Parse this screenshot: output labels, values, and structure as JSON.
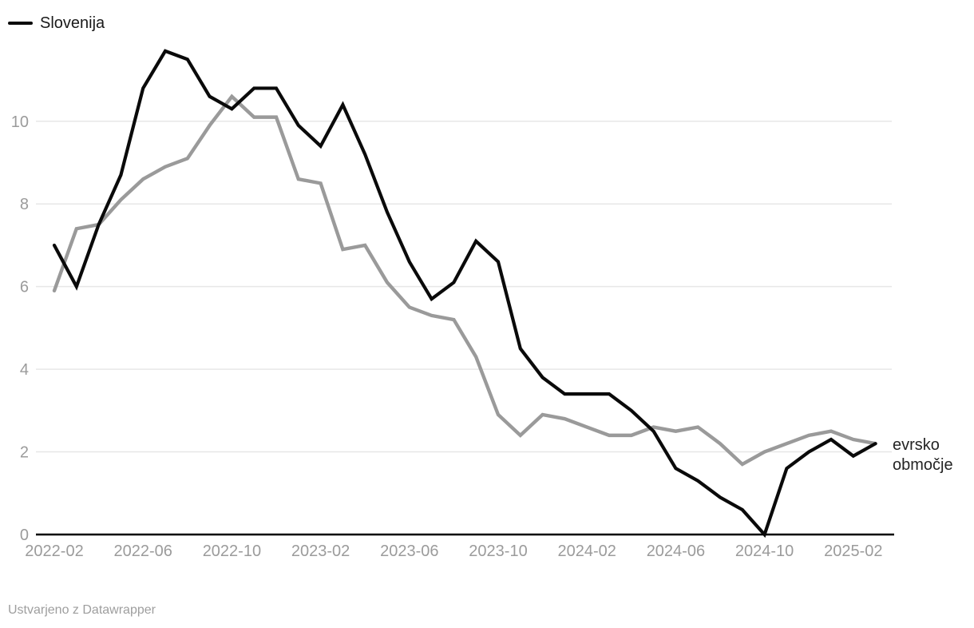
{
  "legend": {
    "series_label": "Slovenija"
  },
  "annotation": {
    "line1": "evrsko",
    "line2": "območje"
  },
  "footer": {
    "credit": "Ustvarjeno z Datawrapper"
  },
  "chart_data": {
    "type": "line",
    "x": [
      "2022-02",
      "2022-03",
      "2022-04",
      "2022-05",
      "2022-06",
      "2022-07",
      "2022-08",
      "2022-09",
      "2022-10",
      "2022-11",
      "2022-12",
      "2023-01",
      "2023-02",
      "2023-03",
      "2023-04",
      "2023-05",
      "2023-06",
      "2023-07",
      "2023-08",
      "2023-09",
      "2023-10",
      "2023-11",
      "2023-12",
      "2024-01",
      "2024-02",
      "2024-03",
      "2024-04",
      "2024-05",
      "2024-06",
      "2024-07",
      "2024-08",
      "2024-09",
      "2024-10",
      "2024-11",
      "2024-12",
      "2025-01",
      "2025-02",
      "2025-03"
    ],
    "series": [
      {
        "name": "Slovenija",
        "color": "#0a0a0a",
        "stroke_width": 4.2,
        "values": [
          7.0,
          6.0,
          7.5,
          8.7,
          10.8,
          11.7,
          11.5,
          10.6,
          10.3,
          10.8,
          10.8,
          9.9,
          9.4,
          10.4,
          9.2,
          7.8,
          6.6,
          5.7,
          6.1,
          7.1,
          6.6,
          4.5,
          3.8,
          3.4,
          3.4,
          3.4,
          3.0,
          2.5,
          1.6,
          1.3,
          0.9,
          0.6,
          0.0,
          1.6,
          2.0,
          2.3,
          1.9,
          2.2
        ]
      },
      {
        "name": "evrsko območje",
        "color": "#9a9a9a",
        "stroke_width": 4.4,
        "values": [
          5.9,
          7.4,
          7.5,
          8.1,
          8.6,
          8.9,
          9.1,
          9.9,
          10.6,
          10.1,
          10.1,
          8.6,
          8.5,
          6.9,
          7.0,
          6.1,
          5.5,
          5.3,
          5.2,
          4.3,
          2.9,
          2.4,
          2.9,
          2.8,
          2.6,
          2.4,
          2.4,
          2.6,
          2.5,
          2.6,
          2.2,
          1.7,
          2.0,
          2.2,
          2.4,
          2.5,
          2.3,
          2.2
        ]
      }
    ],
    "x_tick_labels": [
      "2022-02",
      "2022-06",
      "2022-10",
      "2023-02",
      "2023-06",
      "2023-10",
      "2024-02",
      "2024-06",
      "2024-10",
      "2025-02"
    ],
    "x_tick_every": 4,
    "y_ticks": [
      0,
      2,
      4,
      6,
      8,
      10
    ],
    "ylim": [
      0,
      12.2
    ],
    "title": "",
    "xlabel": "",
    "ylabel": "",
    "grid": "horizontal",
    "legend_position": "top-left",
    "axis_color": "#000000",
    "grid_color": "#e7e7e7",
    "tick_label_color": "#9b9b9b"
  }
}
